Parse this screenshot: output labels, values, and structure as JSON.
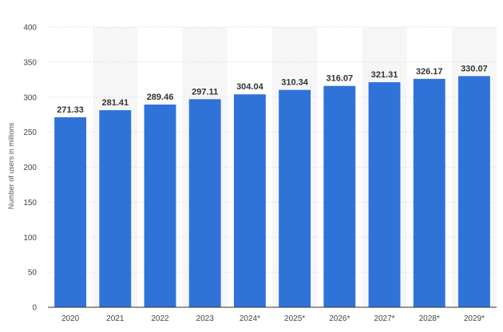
{
  "chart_data": {
    "type": "bar",
    "title": "",
    "xlabel": "",
    "ylabel": "Number of users in millions",
    "categories": [
      "2020",
      "2021",
      "2022",
      "2023",
      "2024*",
      "2025*",
      "2026*",
      "2027*",
      "2028*",
      "2029*"
    ],
    "values": [
      271.33,
      281.41,
      289.46,
      297.11,
      304.04,
      310.34,
      316.07,
      321.31,
      326.17,
      330.07
    ],
    "value_labels": [
      "271.33",
      "281.41",
      "289.46",
      "297.11",
      "304.04",
      "310.34",
      "316.07",
      "321.31",
      "326.17",
      "330.07"
    ],
    "ylim": [
      0,
      400
    ],
    "yticks": [
      "0",
      "50",
      "100",
      "150",
      "200",
      "250",
      "300",
      "350",
      "400"
    ],
    "grid": true,
    "legend": "none",
    "colors": {
      "bar": "#2f73d9",
      "grid": "#e3e3e3",
      "band": "#f6f6f6",
      "axis": "#333333"
    }
  }
}
